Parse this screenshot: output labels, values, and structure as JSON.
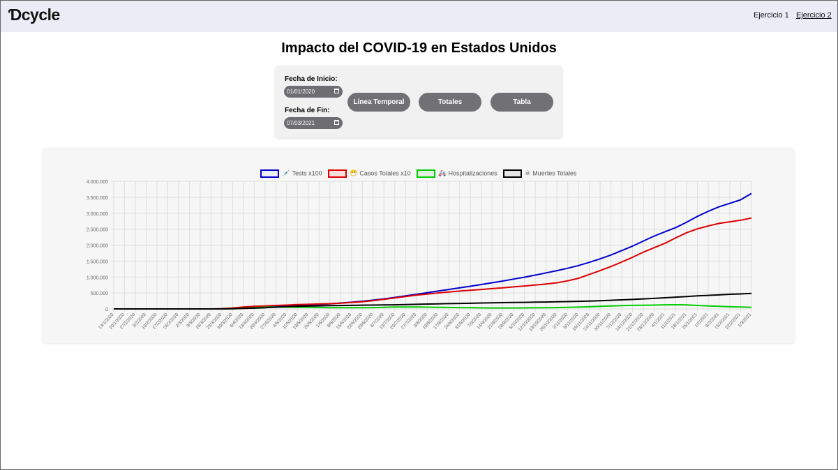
{
  "header": {
    "logo": "Ɗcycle",
    "links": [
      "Ejercicio 1",
      "Ejercicio 2"
    ]
  },
  "title": "Impacto del COVID-19 en Estados Unidos",
  "filters": {
    "start_label": "Fecha de Inicio:",
    "start_value": "01/01/2020",
    "end_label": "Fecha de Fin:",
    "end_value": "07/03/2021",
    "buttons": [
      "Línea Temporal",
      "Totales",
      "Tabla"
    ]
  },
  "chart_data": {
    "type": "line",
    "title": "",
    "xlabel": "",
    "ylabel": "",
    "ylim": [
      0,
      4000000
    ],
    "yticks": [
      0,
      500000,
      1000000,
      1500000,
      2000000,
      2500000,
      3000000,
      3500000,
      4000000
    ],
    "ytick_labels": [
      "0",
      "500.000",
      "1.000.000",
      "1.500.000",
      "2.000.000",
      "2.500.000",
      "3.000.000",
      "3.500.000",
      "4.000.000"
    ],
    "grid": true,
    "legend_position": "top",
    "x": [
      "13/1/2020",
      "20/1/2020",
      "27/1/2020",
      "3/2/2020",
      "10/2/2020",
      "17/2/2020",
      "24/2/2020",
      "2/3/2020",
      "9/3/2020",
      "16/3/2020",
      "23/3/2020",
      "30/3/2020",
      "6/4/2020",
      "13/4/2020",
      "20/4/2020",
      "27/4/2020",
      "4/5/2020",
      "11/5/2020",
      "18/5/2020",
      "25/5/2020",
      "1/6/2020",
      "8/6/2020",
      "15/6/2020",
      "22/6/2020",
      "29/6/2020",
      "6/7/2020",
      "13/7/2020",
      "20/7/2020",
      "27/7/2020",
      "3/8/2020",
      "10/8/2020",
      "17/8/2020",
      "24/8/2020",
      "31/8/2020",
      "7/9/2020",
      "14/9/2020",
      "21/9/2020",
      "28/9/2020",
      "5/10/2020",
      "12/10/2020",
      "19/10/2020",
      "26/10/2020",
      "2/11/2020",
      "9/11/2020",
      "16/11/2020",
      "23/11/2020",
      "30/11/2020",
      "7/12/2020",
      "14/12/2020",
      "21/12/2020",
      "28/12/2020",
      "4/1/2021",
      "11/1/2021",
      "18/1/2021",
      "25/1/2021",
      "1/2/2021",
      "8/2/2021",
      "15/2/2021",
      "22/2/2021",
      "1/3/2021"
    ],
    "series": [
      {
        "name": "Tests x100",
        "emoji": "💉",
        "color": "#0000cc",
        "values": [
          0,
          0,
          0,
          0,
          0,
          0,
          0,
          0,
          0,
          500,
          2000,
          10000,
          30000,
          50000,
          65000,
          80000,
          95000,
          110000,
          125000,
          140000,
          160000,
          185000,
          210000,
          240000,
          275000,
          315000,
          360000,
          410000,
          460000,
          510000,
          560000,
          610000,
          660000,
          710000,
          765000,
          820000,
          875000,
          935000,
          995000,
          1060000,
          1130000,
          1200000,
          1275000,
          1360000,
          1460000,
          1570000,
          1690000,
          1830000,
          1970000,
          2130000,
          2285000,
          2420000,
          2550000,
          2720000,
          2900000,
          3060000,
          3200000,
          3310000,
          3420000,
          3620000
        ]
      },
      {
        "name": "Casos Totales x10",
        "emoji": "😷",
        "color": "#dd0000",
        "values": [
          0,
          0,
          0,
          0,
          0,
          0,
          0,
          0,
          0,
          500,
          8000,
          30000,
          60000,
          80000,
          95000,
          110000,
          120000,
          135000,
          145000,
          155000,
          165000,
          180000,
          200000,
          225000,
          260000,
          300000,
          345000,
          390000,
          430000,
          465000,
          500000,
          530000,
          560000,
          585000,
          610000,
          635000,
          660000,
          690000,
          720000,
          750000,
          780000,
          820000,
          880000,
          960000,
          1080000,
          1200000,
          1330000,
          1470000,
          1620000,
          1780000,
          1920000,
          2060000,
          2230000,
          2390000,
          2510000,
          2600000,
          2680000,
          2730000,
          2780000,
          2850000
        ]
      },
      {
        "name": "Hospitalizaciones",
        "emoji": "🚑",
        "color": "#00cc00",
        "values": [
          0,
          0,
          0,
          0,
          0,
          0,
          0,
          0,
          0,
          0,
          1000,
          5000,
          20000,
          40000,
          55000,
          58000,
          56000,
          52000,
          48000,
          44000,
          40000,
          38000,
          37000,
          38000,
          42000,
          50000,
          58000,
          60000,
          58000,
          54000,
          50000,
          46000,
          42000,
          38000,
          33000,
          30000,
          30000,
          31000,
          33000,
          35000,
          38000,
          42000,
          48000,
          56000,
          67000,
          80000,
          92000,
          102000,
          111000,
          116000,
          120000,
          130000,
          132000,
          125000,
          110000,
          95000,
          80000,
          68000,
          58000,
          48000
        ]
      },
      {
        "name": "Muertes Totales",
        "emoji": "☠",
        "color": "#000000",
        "values": [
          0,
          0,
          0,
          0,
          0,
          0,
          0,
          0,
          0,
          0,
          1000,
          5000,
          15000,
          25000,
          40000,
          55000,
          70000,
          80000,
          90000,
          97000,
          103000,
          108000,
          112000,
          117000,
          120000,
          125000,
          130000,
          137000,
          145000,
          152000,
          160000,
          166000,
          172000,
          178000,
          185000,
          191000,
          196000,
          201000,
          206000,
          212000,
          217000,
          223000,
          230000,
          238000,
          247000,
          258000,
          270000,
          284000,
          298000,
          314000,
          330000,
          350000,
          370000,
          390000,
          408000,
          425000,
          440000,
          458000,
          470000,
          487000
        ]
      }
    ]
  }
}
